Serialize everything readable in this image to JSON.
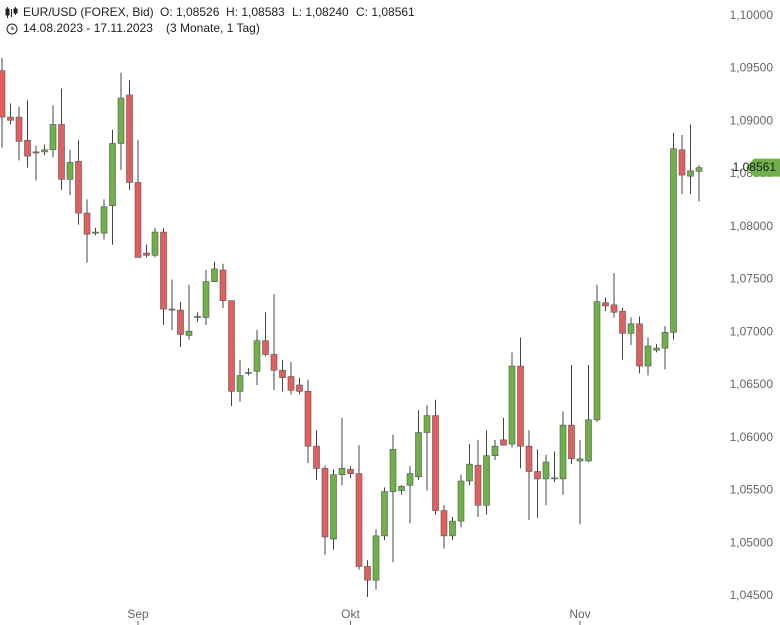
{
  "chart_data": {
    "type": "candlestick",
    "title": "EUR/USD (FOREX, Bid)",
    "ohlc_labels": [
      "O: 1,08526",
      "H: 1,08583",
      "L: 1,08240",
      "C: 1,08561"
    ],
    "date_range": "14.08.2023 - 17.11.2023",
    "period": "(3 Monate, 1 Tag)",
    "categories": [
      null,
      null,
      null,
      null,
      null,
      null,
      null,
      null,
      null,
      null,
      null,
      null,
      null,
      null,
      null,
      null,
      "Sep",
      null,
      null,
      null,
      null,
      null,
      null,
      null,
      null,
      null,
      null,
      null,
      null,
      null,
      null,
      null,
      null,
      null,
      null,
      null,
      null,
      null,
      null,
      null,
      null,
      "Okt",
      null,
      null,
      null,
      null,
      null,
      null,
      null,
      null,
      null,
      null,
      null,
      null,
      null,
      null,
      null,
      null,
      null,
      null,
      null,
      null,
      null,
      null,
      null,
      null,
      null,
      null,
      "Nov",
      null,
      null,
      null,
      null,
      null,
      null,
      null,
      null,
      null,
      null,
      null,
      null,
      null,
      null
    ],
    "series": {
      "up_color": "#6db148",
      "down_color": "#e06060",
      "open": [
        1.0948,
        1.0904,
        1.0904,
        1.0882,
        1.0871,
        1.0871,
        1.0873,
        1.0897,
        1.0845,
        1.0862,
        1.0813,
        1.0794,
        1.0794,
        1.082,
        1.0879,
        1.0925,
        1.0842,
        1.0775,
        1.0773,
        1.0795,
        1.0722,
        1.0721,
        1.0697,
        1.0714,
        1.0714,
        1.0748,
        1.0759,
        1.073,
        1.0644,
        1.0661,
        1.0663,
        1.0692,
        1.0679,
        1.0664,
        1.0658,
        1.065,
        1.0644,
        1.0592,
        1.0571,
        1.0504,
        1.0565,
        1.057,
        1.0566,
        1.0478,
        1.0465,
        1.0507,
        1.0549,
        1.055,
        1.0555,
        1.0563,
        1.0605,
        1.0621,
        1.0531,
        1.0507,
        1.0521,
        1.0559,
        1.0574,
        1.0536,
        1.0583,
        1.0598,
        1.0594,
        1.0668,
        1.0592,
        1.0568,
        1.0561,
        1.0561,
        1.0561,
        1.0612,
        1.0578,
        1.0578,
        1.0617,
        1.0728,
        1.0726,
        1.072,
        1.0699,
        1.0708,
        1.0668,
        1.0683,
        1.0685,
        1.07,
        1.0873,
        1.0848,
        1.08526
      ],
      "high": [
        1.096,
        1.0917,
        1.0914,
        1.092,
        1.0877,
        1.0878,
        1.0915,
        1.0931,
        1.0873,
        1.0882,
        1.0826,
        1.0799,
        1.0826,
        1.0892,
        1.0946,
        1.0939,
        1.0882,
        1.0783,
        1.0799,
        1.0799,
        1.075,
        1.0729,
        1.0745,
        1.0719,
        1.0759,
        1.0767,
        1.0765,
        1.073,
        1.0674,
        1.0666,
        1.0702,
        1.0719,
        1.0736,
        1.0674,
        1.0672,
        1.0657,
        1.0655,
        1.0607,
        1.0574,
        1.057,
        1.0619,
        1.0573,
        1.0593,
        1.0484,
        1.0513,
        1.0553,
        1.0603,
        1.0555,
        1.0573,
        1.0626,
        1.0631,
        1.0636,
        1.0536,
        1.0525,
        1.0565,
        1.0594,
        1.0598,
        1.0607,
        1.0598,
        1.0619,
        1.0681,
        1.0695,
        1.0607,
        1.0589,
        1.0584,
        1.0587,
        1.0625,
        1.0669,
        1.0598,
        1.0669,
        1.0745,
        1.0733,
        1.0756,
        1.0723,
        1.0714,
        1.0715,
        1.0695,
        1.0689,
        1.0706,
        1.0889,
        1.0887,
        1.0897,
        1.08583
      ],
      "low": [
        1.0875,
        1.0897,
        1.0863,
        1.0856,
        1.0844,
        1.0868,
        1.0866,
        1.0835,
        1.083,
        1.0802,
        1.0766,
        1.0792,
        1.0788,
        1.0783,
        1.0854,
        1.0835,
        1.0771,
        1.0771,
        1.0771,
        1.0707,
        1.0702,
        1.0686,
        1.0693,
        1.071,
        1.0707,
        1.0748,
        1.0723,
        1.063,
        1.0634,
        1.0659,
        1.065,
        1.0677,
        1.0645,
        1.0644,
        1.0641,
        1.0641,
        1.0576,
        1.056,
        1.0489,
        1.0494,
        1.0555,
        1.0562,
        1.0475,
        1.0449,
        1.0456,
        1.0503,
        1.0482,
        1.0546,
        1.0519,
        1.056,
        1.055,
        1.0527,
        1.0495,
        1.0503,
        1.0515,
        1.0555,
        1.0525,
        1.0527,
        1.0579,
        1.0593,
        1.0591,
        1.0571,
        1.0522,
        1.0524,
        1.0536,
        1.0558,
        1.0546,
        1.0575,
        1.0518,
        1.0577,
        1.0615,
        1.072,
        1.0714,
        1.0674,
        1.0688,
        1.0661,
        1.0659,
        1.0681,
        1.0665,
        1.0693,
        1.0831,
        1.0831,
        1.0824
      ],
      "close": [
        1.0904,
        1.0901,
        1.0881,
        1.0867,
        1.087,
        1.0873,
        1.0897,
        1.0845,
        1.0861,
        1.0813,
        1.0793,
        1.0795,
        1.0819,
        1.0879,
        1.0922,
        1.0842,
        1.0771,
        1.0773,
        1.0795,
        1.0722,
        1.0721,
        1.0698,
        1.0701,
        1.0715,
        1.0748,
        1.076,
        1.073,
        1.0644,
        1.0659,
        1.0662,
        1.0692,
        1.0679,
        1.0664,
        1.0657,
        1.0645,
        1.0644,
        1.0592,
        1.0571,
        1.0506,
        1.0565,
        1.0571,
        1.0566,
        1.0478,
        1.0465,
        1.0507,
        1.0549,
        1.0589,
        1.0554,
        1.0566,
        1.0605,
        1.0621,
        1.0531,
        1.0507,
        1.0521,
        1.0559,
        1.0575,
        1.0536,
        1.0583,
        1.0592,
        1.0593,
        1.0668,
        1.0592,
        1.0568,
        1.0561,
        1.0577,
        1.0562,
        1.0612,
        1.058,
        1.058,
        1.0617,
        1.0729,
        1.0725,
        1.0719,
        1.0699,
        1.0708,
        1.0668,
        1.0687,
        1.0685,
        1.07,
        1.0874,
        1.0849,
        1.0853,
        1.08561
      ]
    },
    "price_tag": {
      "value": 1.08561,
      "label": "1,08561",
      "color": "#6db148"
    },
    "ylim": [
      1.04225,
      1.1015
    ],
    "yticks": [
      {
        "value": 1.045,
        "label": "1,04500"
      },
      {
        "value": 1.05,
        "label": "1,05000"
      },
      {
        "value": 1.055,
        "label": "1,05500"
      },
      {
        "value": 1.06,
        "label": "1,06000"
      },
      {
        "value": 1.065,
        "label": "1,06500"
      },
      {
        "value": 1.07,
        "label": "1,07000"
      },
      {
        "value": 1.075,
        "label": "1,07500"
      },
      {
        "value": 1.08,
        "label": "1,08000"
      },
      {
        "value": 1.085,
        "label": "1,08500"
      },
      {
        "value": 1.09,
        "label": "1,09000"
      },
      {
        "value": 1.095,
        "label": "1,09500"
      },
      {
        "value": 1.1,
        "label": "1,10000"
      }
    ],
    "grid": false
  }
}
